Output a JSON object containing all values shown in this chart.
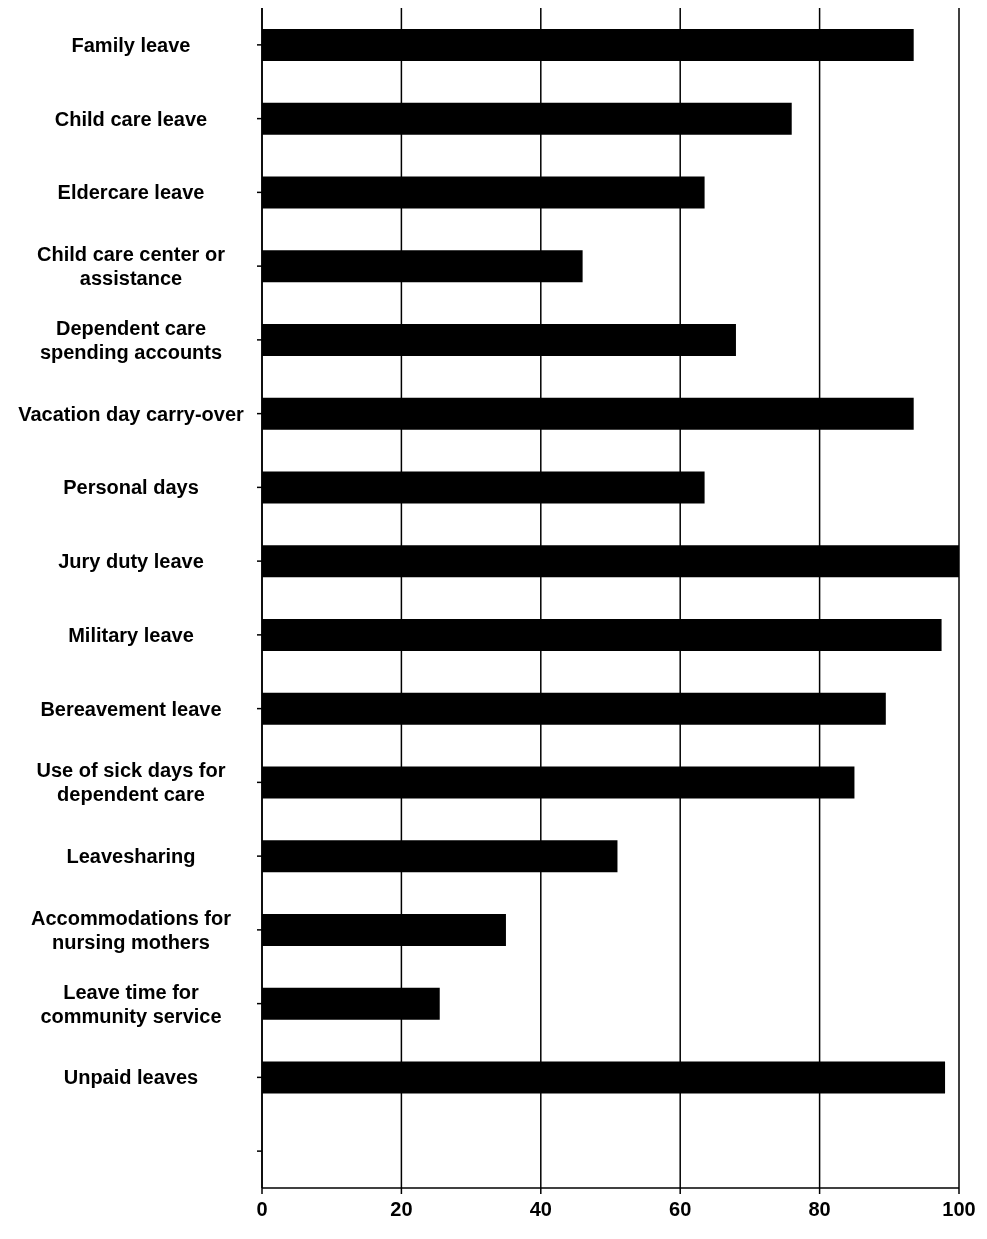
{
  "chart_data": {
    "type": "bar",
    "orientation": "horizontal",
    "categories": [
      "Family leave",
      "Child care leave",
      "Eldercare leave",
      "Child care center or assistance",
      "Dependent care spending accounts",
      "Vacation day carry-over",
      "Personal days",
      "Jury duty leave",
      "Military leave",
      "Bereavement leave",
      "Use of sick days for dependent care",
      "Leavesharing",
      "Accommodations for nursing mothers",
      "Leave time for community service",
      "Unpaid leaves",
      null
    ],
    "values": [
      93.5,
      76,
      63.5,
      46,
      68,
      93.5,
      63.5,
      100,
      97.5,
      89.5,
      85,
      51,
      35,
      25.5,
      98,
      null
    ],
    "color": "#000000",
    "xlim": [
      0,
      100
    ],
    "xticks": [
      0,
      20,
      40,
      60,
      80,
      100
    ],
    "grid": "x"
  }
}
